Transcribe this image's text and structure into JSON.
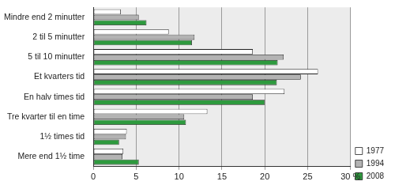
{
  "chart_data": {
    "type": "bar",
    "orientation": "horizontal",
    "categories": [
      "Mindre end 2 minutter",
      "2 til 5 minutter",
      "5 til 10 minutter",
      "Et kvarters tid",
      "En halv times tid",
      "Tre kvarter til en time",
      "1½ times tid",
      "Mere end 1½ time"
    ],
    "series": [
      {
        "name": "1977",
        "color": "#ffffff",
        "values": [
          3.2,
          8.8,
          18.6,
          26.2,
          22.3,
          13.3,
          3.9,
          3.5
        ]
      },
      {
        "name": "1994",
        "color": "#b3b3b3",
        "values": [
          5.3,
          11.8,
          22.2,
          24.2,
          18.6,
          10.6,
          3.8,
          3.4
        ]
      },
      {
        "name": "2008",
        "color": "#2e9a3e",
        "values": [
          6.2,
          11.5,
          21.5,
          21.4,
          20.0,
          10.8,
          3.0,
          5.3
        ]
      }
    ],
    "xlim": [
      0,
      30
    ],
    "xticks": [
      0,
      5,
      10,
      15,
      20,
      25,
      {
        "value": 30,
        "label": "30 %"
      }
    ],
    "grid": true,
    "legend": "right"
  }
}
